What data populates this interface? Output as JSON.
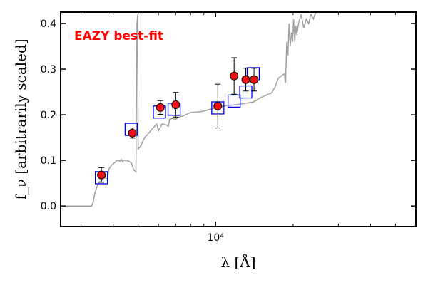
{
  "chart_data": {
    "type": "scatter",
    "title": "",
    "xlabel": "λ [Å]",
    "ylabel": "f_ν [arbitrarily scaled]",
    "x_scale": "log",
    "xlim": [
      2500,
      60000
    ],
    "ylim": [
      -0.045,
      0.425
    ],
    "x_ticks": [
      {
        "value": 10000,
        "label": "10⁴"
      }
    ],
    "y_ticks": [
      {
        "value": 0.0,
        "label": "0.0"
      },
      {
        "value": 0.1,
        "label": "0.1"
      },
      {
        "value": 0.2,
        "label": "0.2"
      },
      {
        "value": 0.3,
        "label": "0.3"
      },
      {
        "value": 0.4,
        "label": "0.4"
      }
    ],
    "grid": false,
    "annotation": {
      "text": "EAZY best-fit",
      "color": "#ff0000"
    },
    "colors": {
      "model": "#a0a0a0",
      "model_phot": "#0000ee",
      "observed_fill": "#ee1111",
      "observed_edge": "#000000",
      "errorbar": "#000000"
    },
    "series": [
      {
        "kind": "model-spectrum",
        "x": [
          2500,
          3300,
          3350,
          3400,
          3500,
          3600,
          3700,
          3800,
          3850,
          3950,
          4050,
          4150,
          4200,
          4250,
          4300,
          4350,
          4400,
          4500,
          4600,
          4700,
          4800,
          4900,
          4950,
          4980,
          5000,
          5100,
          5300,
          5500,
          5700,
          5800,
          5900,
          6000,
          6200,
          6400,
          6560,
          6620,
          6800,
          7000,
          7200,
          7500,
          8000,
          8500,
          9000,
          9500,
          10000,
          11000,
          12000,
          13000,
          14000,
          15000,
          16000,
          16500,
          17000,
          17500,
          18000,
          18500,
          18700,
          18900,
          19100,
          19300,
          19500,
          19700,
          19900,
          20100,
          20300,
          20500,
          20700,
          21000,
          21500,
          22000,
          22500,
          23000,
          23500,
          24000,
          24500,
          25000
        ],
        "y": [
          0.0,
          0.0,
          0.01,
          0.03,
          0.05,
          0.056,
          0.062,
          0.06,
          0.082,
          0.09,
          0.095,
          0.1,
          0.1,
          0.098,
          0.102,
          0.097,
          0.1,
          0.1,
          0.098,
          0.095,
          0.08,
          0.075,
          0.4,
          0.42,
          0.125,
          0.13,
          0.15,
          0.16,
          0.17,
          0.175,
          0.18,
          0.165,
          0.18,
          0.178,
          0.175,
          0.19,
          0.192,
          0.19,
          0.195,
          0.198,
          0.205,
          0.206,
          0.208,
          0.212,
          0.215,
          0.22,
          0.222,
          0.225,
          0.228,
          0.238,
          0.245,
          0.248,
          0.26,
          0.28,
          0.285,
          0.29,
          0.27,
          0.36,
          0.33,
          0.4,
          0.35,
          0.38,
          0.36,
          0.41,
          0.36,
          0.395,
          0.375,
          0.4,
          0.42,
          0.39,
          0.41,
          0.4,
          0.42,
          0.41,
          0.43,
          0.43
        ]
      },
      {
        "kind": "model-photometry",
        "x": [
          3600,
          4700,
          6050,
          6900,
          10200,
          11800,
          13100,
          14000
        ],
        "y": [
          0.062,
          0.168,
          0.206,
          0.212,
          0.215,
          0.23,
          0.25,
          0.29
        ]
      },
      {
        "kind": "observed-photometry",
        "x": [
          3600,
          4750,
          6100,
          7000,
          10200,
          11800,
          13100,
          14100
        ],
        "y": [
          0.068,
          0.16,
          0.216,
          0.222,
          0.219,
          0.285,
          0.277,
          0.277
        ],
        "yerr": [
          0.016,
          0.011,
          0.015,
          0.027,
          0.048,
          0.04,
          0.025,
          0.025
        ]
      }
    ]
  }
}
